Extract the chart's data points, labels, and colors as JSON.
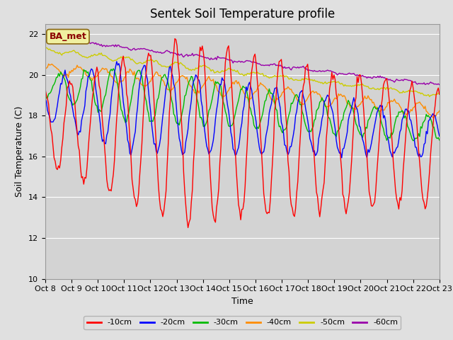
{
  "title": "Sentek Soil Temperature profile",
  "xlabel": "Time",
  "ylabel": "Soil Temperature (C)",
  "ylim": [
    10,
    22.5
  ],
  "yticks": [
    10,
    12,
    14,
    16,
    18,
    20,
    22
  ],
  "xlim": [
    0,
    15
  ],
  "xtick_labels": [
    "Oct 8",
    "Oct 9",
    "Oct 10",
    "Oct 11",
    "Oct 12",
    "Oct 13",
    "Oct 14",
    "Oct 15",
    "Oct 16",
    "Oct 17",
    "Oct 18",
    "Oct 19",
    "Oct 20",
    "Oct 21",
    "Oct 22",
    "Oct 23"
  ],
  "fig_bg": "#e0e0e0",
  "plot_bg": "#d3d3d3",
  "annotation_text": "BA_met",
  "annotation_color": "#8b0000",
  "annotation_bg": "#f0f0a0",
  "annotation_edge": "#8b6914",
  "colors": {
    "-10cm": "#ff0000",
    "-20cm": "#0000ff",
    "-30cm": "#00bb00",
    "-40cm": "#ff8c00",
    "-50cm": "#cccc00",
    "-60cm": "#9900aa"
  },
  "n_days": 15,
  "points_per_day": 24,
  "line_width": 1.0,
  "title_fontsize": 12,
  "axis_fontsize": 9,
  "tick_fontsize": 8,
  "legend_fontsize": 8
}
